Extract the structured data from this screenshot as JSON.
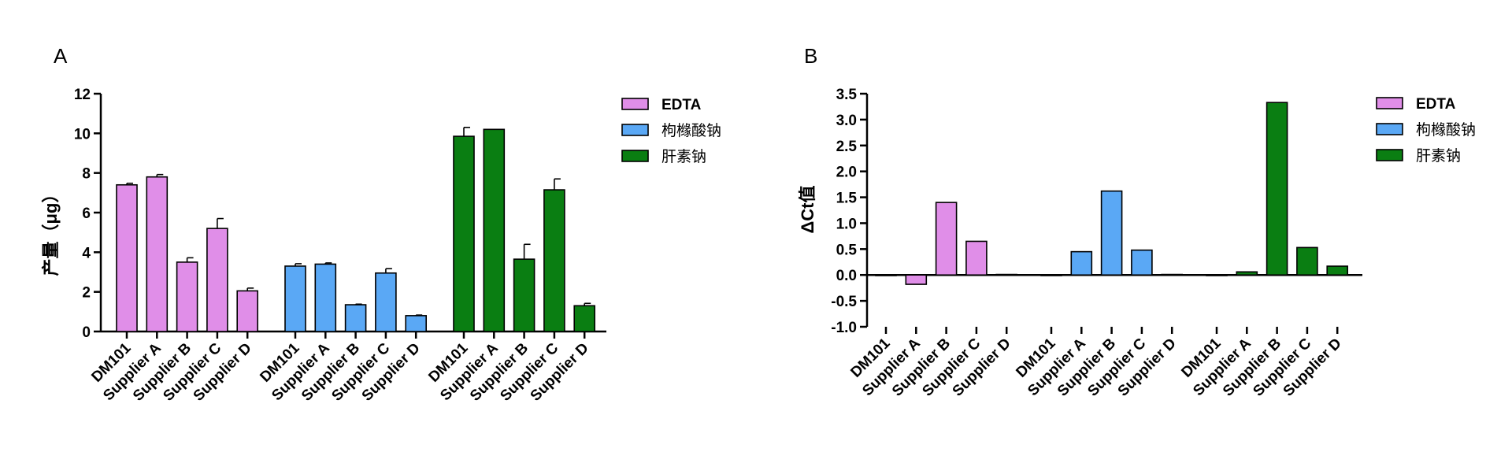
{
  "figure": {
    "panels": [
      "A",
      "B"
    ]
  },
  "colors": {
    "EDTA": "#e08ee8",
    "citrate": "#5aa8f5",
    "heparin": "#0a7e12"
  },
  "chart_data": [
    {
      "panel": "A",
      "type": "bar",
      "ylabel": "产量（μg）",
      "ylim": [
        0,
        12
      ],
      "yticks": [
        "0",
        "2",
        "4",
        "6",
        "8",
        "10",
        "12"
      ],
      "categories": [
        "DM101",
        "Supplier A",
        "Supplier B",
        "Supplier C",
        "Supplier D"
      ],
      "legend": [
        "EDTA",
        "枸橼酸钠",
        "肝素钠"
      ],
      "series": [
        {
          "name": "EDTA",
          "values": [
            7.4,
            7.8,
            3.5,
            5.2,
            2.05
          ],
          "errors": [
            0.08,
            0.12,
            0.22,
            0.5,
            0.14
          ]
        },
        {
          "name": "枸橼酸钠",
          "values": [
            3.3,
            3.4,
            1.35,
            2.95,
            0.8
          ],
          "errors": [
            0.12,
            0.06,
            0.03,
            0.22,
            0.03
          ]
        },
        {
          "name": "肝素钠",
          "values": [
            9.85,
            10.2,
            3.65,
            7.15,
            1.3
          ],
          "errors": [
            0.45,
            0.0,
            0.75,
            0.55,
            0.12
          ]
        }
      ]
    },
    {
      "panel": "B",
      "type": "bar",
      "ylabel": "ΔCt值",
      "ylim": [
        -1.0,
        3.5
      ],
      "yticks": [
        "-1.0",
        "-0.5",
        "0.0",
        "0.5",
        "1.0",
        "1.5",
        "2.0",
        "2.5",
        "3.0",
        "3.5"
      ],
      "categories": [
        "DM101",
        "Supplier A",
        "Supplier B",
        "Supplier C",
        "Supplier D"
      ],
      "legend": [
        "EDTA",
        "枸橼酸钠",
        "肝素钠"
      ],
      "series": [
        {
          "name": "EDTA",
          "values": [
            0.0,
            -0.18,
            1.4,
            0.65,
            0.01
          ]
        },
        {
          "name": "枸橼酸钠",
          "values": [
            0.0,
            0.45,
            1.62,
            0.48,
            0.01
          ]
        },
        {
          "name": "肝素钠",
          "values": [
            0.0,
            0.06,
            3.33,
            0.53,
            0.17
          ]
        }
      ]
    }
  ]
}
